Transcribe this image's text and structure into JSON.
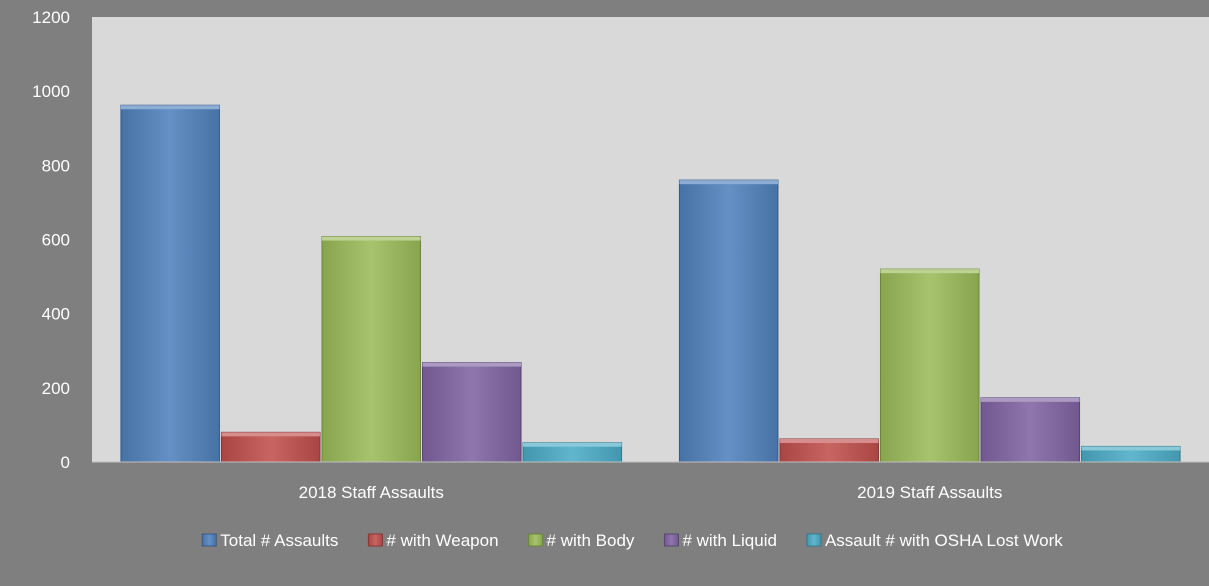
{
  "chart_data": {
    "type": "bar",
    "categories": [
      "2018 Staff Assaults",
      "2019 Staff Assaults"
    ],
    "series": [
      {
        "name": "Total # Assaults",
        "values": [
          962,
          760
        ],
        "color": "#4f81bd"
      },
      {
        "name": "# with Weapon",
        "values": [
          80,
          62
        ],
        "color": "#c0504d"
      },
      {
        "name": "# with Body",
        "values": [
          608,
          520
        ],
        "color": "#9bbb59"
      },
      {
        "name": "# with Liquid",
        "values": [
          268,
          173
        ],
        "color": "#8064a2"
      },
      {
        "name": "Assault # with OSHA Lost Work",
        "values": [
          52,
          42
        ],
        "color": "#4bacc6"
      }
    ],
    "ylim": [
      0,
      1200
    ],
    "yticks": [
      0,
      200,
      400,
      600,
      800,
      1000,
      1200
    ],
    "grid": false,
    "legend": "bottom",
    "colors": {
      "background": "#7f7f7f",
      "plot_area": "#d9d9d9",
      "text": "#ffffff"
    }
  }
}
